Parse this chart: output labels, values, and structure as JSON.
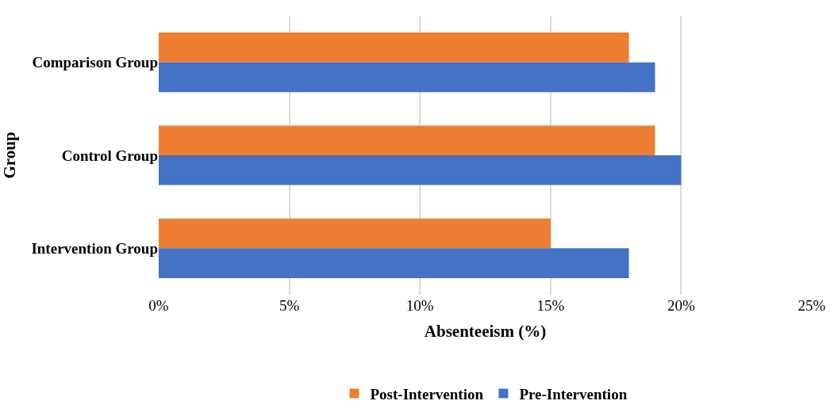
{
  "chart_data": {
    "type": "bar",
    "orientation": "horizontal",
    "xlabel": "Absenteeism (%)",
    "ylabel": "Group",
    "categories": [
      "Comparison Group",
      "Control Group",
      "Intervention Group"
    ],
    "series": [
      {
        "name": "Post-Intervention",
        "color": "#ed7d31",
        "values": [
          18,
          19,
          15
        ]
      },
      {
        "name": "Pre-Intervention",
        "color": "#4472c4",
        "values": [
          19,
          20,
          18
        ]
      }
    ],
    "xlim": [
      0,
      25
    ],
    "xticks": [
      {
        "value": 0,
        "label": "0%"
      },
      {
        "value": 5,
        "label": "5%"
      },
      {
        "value": 10,
        "label": "10%"
      },
      {
        "value": 15,
        "label": "15%"
      },
      {
        "value": 20,
        "label": "20%"
      },
      {
        "value": 25,
        "label": "25%"
      }
    ],
    "grid": "x",
    "legend": "bottom"
  }
}
